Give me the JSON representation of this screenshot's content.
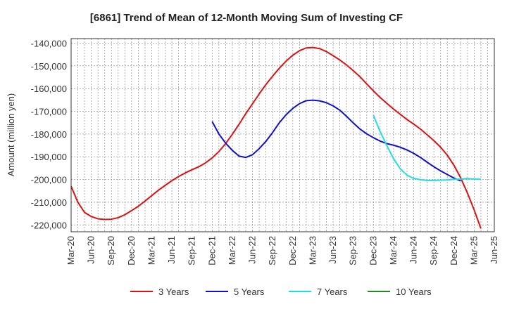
{
  "chart_data": {
    "type": "line",
    "title": "[6861]  Trend of Mean of 12-Month Moving Sum of Investing CF",
    "xlabel": "",
    "ylabel": "Amount (million yen)",
    "ylim": [
      -223000,
      -138000
    ],
    "yticks": [
      -140000,
      -150000,
      -160000,
      -170000,
      -180000,
      -190000,
      -200000,
      -210000,
      -220000
    ],
    "ytick_labels": [
      "-140,000",
      "-150,000",
      "-160,000",
      "-170,000",
      "-180,000",
      "-190,000",
      "-200,000",
      "-210,000",
      "-220,000"
    ],
    "x_start": "Mar-20",
    "x_end": "Jun-25",
    "x_tick_labels": [
      "Mar-20",
      "Jun-20",
      "Sep-20",
      "Dec-20",
      "Mar-21",
      "Jun-21",
      "Sep-21",
      "Dec-21",
      "Mar-22",
      "Jun-22",
      "Sep-22",
      "Dec-22",
      "Mar-23",
      "Jun-23",
      "Sep-23",
      "Dec-23",
      "Mar-24",
      "Jun-24",
      "Sep-24",
      "Dec-24",
      "Mar-25",
      "Jun-25"
    ],
    "grid": true,
    "legend_position": "bottom",
    "series": [
      {
        "name": "3 Years",
        "color": "#dd1111",
        "start_index": 0,
        "values": [
          -203000,
          -210000,
          -214500,
          -216300,
          -217300,
          -217600,
          -217500,
          -216800,
          -215500,
          -213700,
          -211800,
          -209500,
          -207100,
          -204700,
          -202600,
          -200500,
          -198700,
          -197100,
          -195700,
          -194400,
          -192700,
          -190500,
          -187700,
          -184200,
          -180100,
          -175700,
          -171000,
          -166700,
          -162300,
          -158200,
          -154500,
          -151000,
          -147900,
          -145300,
          -143300,
          -142100,
          -141900,
          -142400,
          -143700,
          -145500,
          -147400,
          -149600,
          -152100,
          -154800,
          -157900,
          -161000,
          -163900,
          -166500,
          -169000,
          -171300,
          -173600,
          -175600,
          -177800,
          -180300,
          -182900,
          -185800,
          -189300,
          -193800,
          -199300,
          -206000,
          -213400,
          -221600
        ]
      },
      {
        "name": "5 Years",
        "color": "#1111cc",
        "start_index": 21,
        "values": [
          -174500,
          -180000,
          -184000,
          -187200,
          -189700,
          -190300,
          -189100,
          -186400,
          -183200,
          -179300,
          -175000,
          -171500,
          -168700,
          -166600,
          -165300,
          -165100,
          -165400,
          -166200,
          -167600,
          -169500,
          -172200,
          -175100,
          -177800,
          -179900,
          -181600,
          -183100,
          -184200,
          -184900,
          -185800,
          -187000,
          -188500,
          -190300,
          -192400,
          -194400,
          -196200,
          -197800,
          -199400,
          -200600
        ]
      },
      {
        "name": "7 Years",
        "color": "#22dddd",
        "start_index": 45,
        "values": [
          -171700,
          -178900,
          -185100,
          -190800,
          -195300,
          -198100,
          -199500,
          -200100,
          -200400,
          -200400,
          -200300,
          -200200,
          -199900,
          -199800,
          -199600,
          -199800,
          -199900
        ]
      },
      {
        "name": "10 Years",
        "color": "#228822",
        "start_index": 0,
        "values": []
      }
    ]
  }
}
